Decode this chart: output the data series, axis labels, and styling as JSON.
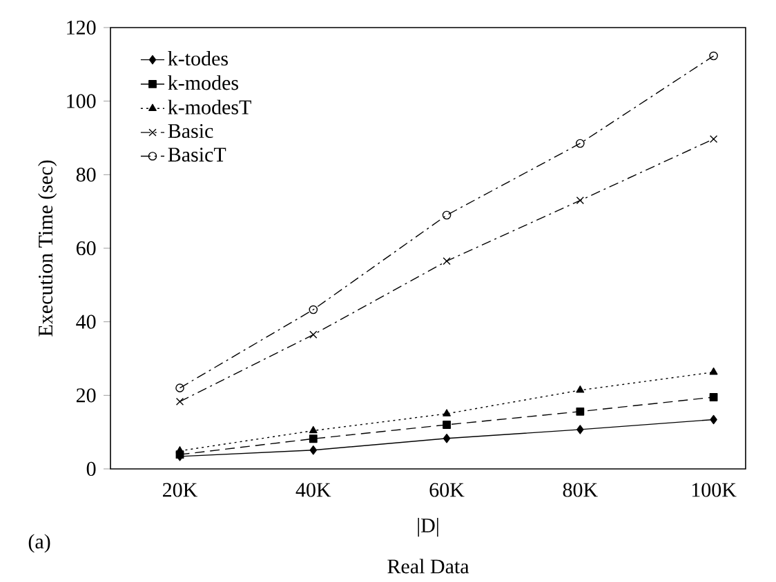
{
  "chart_data": {
    "type": "line",
    "xlabel": "|D|",
    "ylabel": "Execution Time (sec)",
    "annotations": [
      "(a)",
      "Real Data"
    ],
    "categories": [
      "20K",
      "40K",
      "60K",
      "80K",
      "100K"
    ],
    "ylim": [
      0,
      120
    ],
    "yticks": [
      0,
      20,
      40,
      60,
      80,
      100,
      120
    ],
    "legend": "top left",
    "grid": false,
    "series": [
      {
        "name": "k-todes",
        "color": "#000000",
        "marker": "diamond",
        "line_style": "solid",
        "values": [
          3.4,
          5.1,
          8.3,
          10.7,
          13.4
        ]
      },
      {
        "name": "k-modes",
        "color": "#000000",
        "marker": "square",
        "line_style": "dashed",
        "values": [
          3.9,
          8.2,
          12.0,
          15.6,
          19.5
        ]
      },
      {
        "name": "k-modesT",
        "color": "#000000",
        "marker": "triangle",
        "line_style": "dotted",
        "values": [
          4.9,
          10.4,
          15.0,
          21.4,
          26.3
        ]
      },
      {
        "name": "Basic",
        "color": "#000000",
        "marker": "cross",
        "line_style": "dashdotted",
        "values": [
          18.3,
          36.5,
          56.5,
          73.0,
          89.7
        ]
      },
      {
        "name": "BasicT",
        "color": "#000000",
        "marker": "circle",
        "line_style": "dashdotted",
        "values": [
          22.0,
          43.3,
          69.0,
          88.5,
          112.3
        ]
      }
    ]
  }
}
